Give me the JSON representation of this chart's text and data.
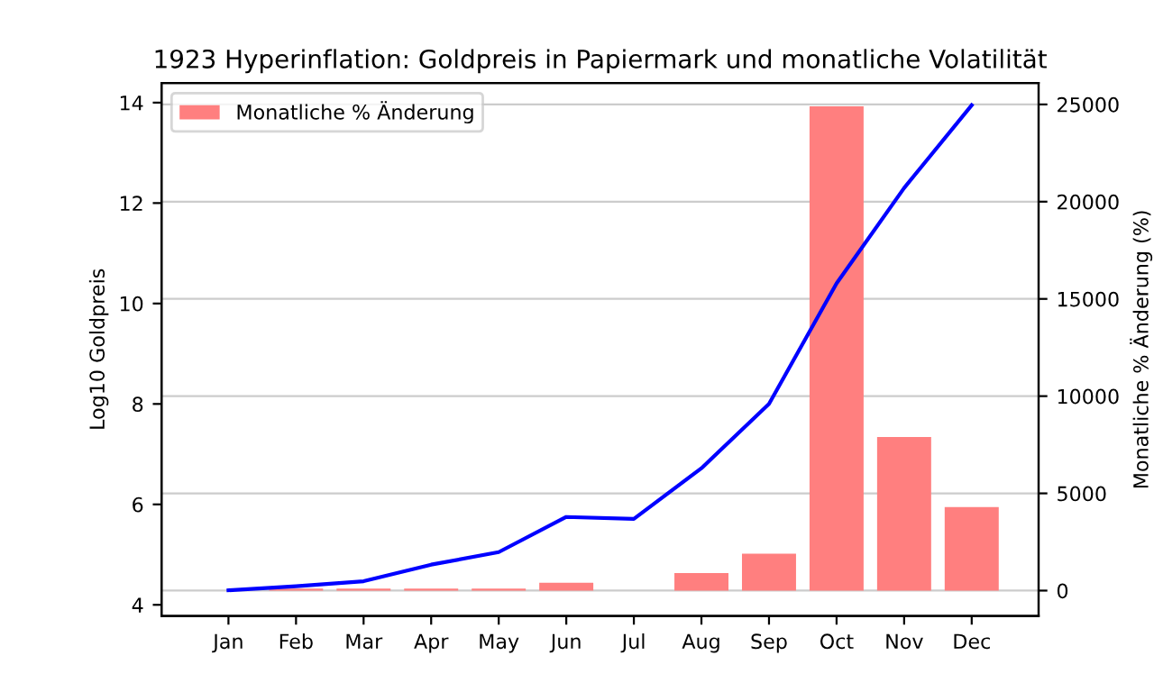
{
  "chart_data": {
    "type": "bar",
    "title": "1923 Hyperinflation: Goldpreis in Papiermark und monatliche Volatilität",
    "ylabel": "Log10 Goldpreis",
    "y2label": "Monatliche % Änderung (%)",
    "categories": [
      "Jan",
      "Feb",
      "Mar",
      "Apr",
      "May",
      "Jun",
      "Jul",
      "Aug",
      "Sep",
      "Oct",
      "Nov",
      "Dec"
    ],
    "series": [
      {
        "type": "line",
        "color": "#0000ff",
        "values": [
          4.29,
          4.37,
          4.47,
          4.8,
          5.05,
          5.75,
          5.71,
          6.72,
          8.0,
          10.4,
          12.3,
          13.95
        ]
      },
      {
        "axis": "y2",
        "name": "Monatliche % Änderung",
        "color": "#ff7f7f",
        "values": [
          0,
          100,
          100,
          100,
          100,
          400,
          0,
          900,
          1900,
          24900,
          7900,
          4300
        ]
      }
    ],
    "ylim": [
      3.78,
      14.39
    ],
    "yticks": [
      4,
      6,
      8,
      10,
      12,
      14
    ],
    "y2lim": [
      -1300,
      26100
    ],
    "y2ticks": [
      0,
      5000,
      10000,
      15000,
      20000,
      25000
    ],
    "grid": "y2",
    "legend": "top left"
  }
}
